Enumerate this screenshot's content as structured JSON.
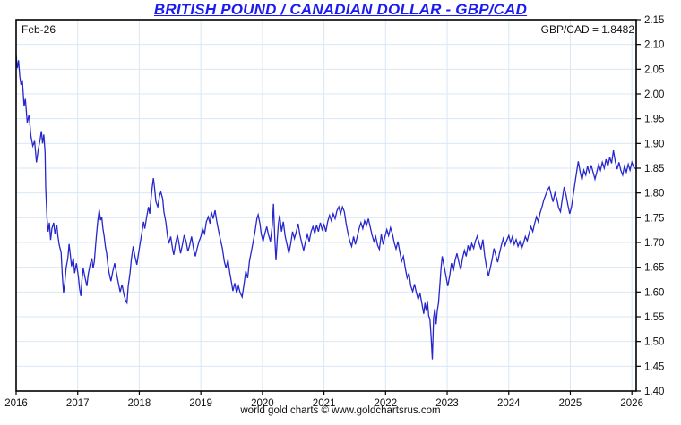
{
  "footer": {
    "credit": "world gold charts © www.goldchartsrus.com"
  },
  "chart_data": {
    "type": "line",
    "title": "BRITISH POUND / CANADIAN DOLLAR - GBP/CAD",
    "date_label": "Feb-26",
    "quote_label": "GBP/CAD = 1.8482",
    "pair": "GBP/CAD",
    "last_value": 1.8482,
    "xlabel": "",
    "ylabel": "",
    "xlim": [
      2016,
      2026.07
    ],
    "ylim": [
      1.4,
      2.15
    ],
    "x_ticks": [
      2016,
      2017,
      2018,
      2019,
      2020,
      2021,
      2022,
      2023,
      2024,
      2025,
      2026
    ],
    "y_ticks": [
      "2.15",
      "2.10",
      "2.05",
      "2.00",
      "1.95",
      "1.90",
      "1.85",
      "1.80",
      "1.75",
      "1.70",
      "1.65",
      "1.60",
      "1.55",
      "1.50",
      "1.45",
      "1.40"
    ],
    "grid": true,
    "legend": "none",
    "line_color": "#2626cc",
    "grid_color": "#d9e8f5",
    "axis_color": "#000000",
    "points": [
      [
        2016.0,
        2.078
      ],
      [
        2016.02,
        2.052
      ],
      [
        2016.04,
        2.068
      ],
      [
        2016.06,
        2.035
      ],
      [
        2016.08,
        2.018
      ],
      [
        2016.1,
        2.028
      ],
      [
        2016.13,
        1.975
      ],
      [
        2016.15,
        1.99
      ],
      [
        2016.18,
        1.942
      ],
      [
        2016.21,
        1.958
      ],
      [
        2016.24,
        1.915
      ],
      [
        2016.27,
        1.895
      ],
      [
        2016.3,
        1.905
      ],
      [
        2016.33,
        1.862
      ],
      [
        2016.36,
        1.888
      ],
      [
        2016.39,
        1.908
      ],
      [
        2016.41,
        1.925
      ],
      [
        2016.43,
        1.9
      ],
      [
        2016.45,
        1.918
      ],
      [
        2016.47,
        1.882
      ],
      [
        2016.48,
        1.81
      ],
      [
        2016.5,
        1.75
      ],
      [
        2016.52,
        1.722
      ],
      [
        2016.54,
        1.74
      ],
      [
        2016.56,
        1.705
      ],
      [
        2016.58,
        1.728
      ],
      [
        2016.61,
        1.74
      ],
      [
        2016.63,
        1.718
      ],
      [
        2016.66,
        1.735
      ],
      [
        2016.68,
        1.712
      ],
      [
        2016.7,
        1.695
      ],
      [
        2016.73,
        1.68
      ],
      [
        2016.75,
        1.635
      ],
      [
        2016.77,
        1.598
      ],
      [
        2016.79,
        1.618
      ],
      [
        2016.81,
        1.648
      ],
      [
        2016.84,
        1.668
      ],
      [
        2016.86,
        1.697
      ],
      [
        2016.88,
        1.675
      ],
      [
        2016.9,
        1.652
      ],
      [
        2016.93,
        1.668
      ],
      [
        2016.95,
        1.638
      ],
      [
        2016.98,
        1.658
      ],
      [
        2017.01,
        1.632
      ],
      [
        2017.03,
        1.607
      ],
      [
        2017.05,
        1.592
      ],
      [
        2017.07,
        1.625
      ],
      [
        2017.09,
        1.648
      ],
      [
        2017.12,
        1.628
      ],
      [
        2017.15,
        1.612
      ],
      [
        2017.17,
        1.635
      ],
      [
        2017.2,
        1.655
      ],
      [
        2017.23,
        1.668
      ],
      [
        2017.25,
        1.648
      ],
      [
        2017.27,
        1.662
      ],
      [
        2017.29,
        1.692
      ],
      [
        2017.31,
        1.722
      ],
      [
        2017.33,
        1.748
      ],
      [
        2017.35,
        1.766
      ],
      [
        2017.37,
        1.745
      ],
      [
        2017.39,
        1.752
      ],
      [
        2017.41,
        1.728
      ],
      [
        2017.43,
        1.712
      ],
      [
        2017.45,
        1.692
      ],
      [
        2017.47,
        1.678
      ],
      [
        2017.49,
        1.655
      ],
      [
        2017.51,
        1.638
      ],
      [
        2017.54,
        1.622
      ],
      [
        2017.57,
        1.642
      ],
      [
        2017.6,
        1.658
      ],
      [
        2017.63,
        1.638
      ],
      [
        2017.66,
        1.618
      ],
      [
        2017.69,
        1.6
      ],
      [
        2017.72,
        1.615
      ],
      [
        2017.75,
        1.595
      ],
      [
        2017.78,
        1.582
      ],
      [
        2017.8,
        1.578
      ],
      [
        2017.82,
        1.612
      ],
      [
        2017.85,
        1.638
      ],
      [
        2017.87,
        1.665
      ],
      [
        2017.9,
        1.692
      ],
      [
        2017.93,
        1.672
      ],
      [
        2017.96,
        1.655
      ],
      [
        2017.98,
        1.672
      ],
      [
        2018.01,
        1.695
      ],
      [
        2018.04,
        1.718
      ],
      [
        2018.07,
        1.742
      ],
      [
        2018.09,
        1.728
      ],
      [
        2018.12,
        1.752
      ],
      [
        2018.15,
        1.772
      ],
      [
        2018.17,
        1.758
      ],
      [
        2018.19,
        1.788
      ],
      [
        2018.21,
        1.812
      ],
      [
        2018.23,
        1.83
      ],
      [
        2018.25,
        1.808
      ],
      [
        2018.27,
        1.782
      ],
      [
        2018.3,
        1.772
      ],
      [
        2018.33,
        1.795
      ],
      [
        2018.35,
        1.802
      ],
      [
        2018.38,
        1.788
      ],
      [
        2018.4,
        1.762
      ],
      [
        2018.43,
        1.742
      ],
      [
        2018.46,
        1.712
      ],
      [
        2018.48,
        1.698
      ],
      [
        2018.51,
        1.712
      ],
      [
        2018.54,
        1.688
      ],
      [
        2018.56,
        1.675
      ],
      [
        2018.59,
        1.698
      ],
      [
        2018.62,
        1.715
      ],
      [
        2018.64,
        1.702
      ],
      [
        2018.67,
        1.678
      ],
      [
        2018.7,
        1.695
      ],
      [
        2018.73,
        1.715
      ],
      [
        2018.76,
        1.702
      ],
      [
        2018.79,
        1.682
      ],
      [
        2018.82,
        1.695
      ],
      [
        2018.85,
        1.712
      ],
      [
        2018.88,
        1.688
      ],
      [
        2018.91,
        1.672
      ],
      [
        2018.94,
        1.688
      ],
      [
        2018.97,
        1.702
      ],
      [
        2019.0,
        1.712
      ],
      [
        2019.03,
        1.728
      ],
      [
        2019.06,
        1.718
      ],
      [
        2019.09,
        1.742
      ],
      [
        2019.12,
        1.752
      ],
      [
        2019.15,
        1.738
      ],
      [
        2019.17,
        1.762
      ],
      [
        2019.2,
        1.748
      ],
      [
        2019.23,
        1.765
      ],
      [
        2019.26,
        1.742
      ],
      [
        2019.29,
        1.722
      ],
      [
        2019.32,
        1.705
      ],
      [
        2019.35,
        1.688
      ],
      [
        2019.38,
        1.662
      ],
      [
        2019.41,
        1.648
      ],
      [
        2019.44,
        1.665
      ],
      [
        2019.47,
        1.638
      ],
      [
        2019.5,
        1.618
      ],
      [
        2019.52,
        1.602
      ],
      [
        2019.55,
        1.618
      ],
      [
        2019.58,
        1.598
      ],
      [
        2019.61,
        1.612
      ],
      [
        2019.64,
        1.598
      ],
      [
        2019.67,
        1.59
      ],
      [
        2019.7,
        1.615
      ],
      [
        2019.73,
        1.642
      ],
      [
        2019.76,
        1.628
      ],
      [
        2019.79,
        1.662
      ],
      [
        2019.82,
        1.682
      ],
      [
        2019.85,
        1.702
      ],
      [
        2019.88,
        1.722
      ],
      [
        2019.91,
        1.748
      ],
      [
        2019.93,
        1.756
      ],
      [
        2019.96,
        1.738
      ],
      [
        2019.98,
        1.718
      ],
      [
        2020.01,
        1.702
      ],
      [
        2020.04,
        1.718
      ],
      [
        2020.07,
        1.732
      ],
      [
        2020.1,
        1.715
      ],
      [
        2020.13,
        1.702
      ],
      [
        2020.16,
        1.735
      ],
      [
        2020.18,
        1.778
      ],
      [
        2020.2,
        1.712
      ],
      [
        2020.22,
        1.664
      ],
      [
        2020.24,
        1.705
      ],
      [
        2020.26,
        1.738
      ],
      [
        2020.28,
        1.755
      ],
      [
        2020.31,
        1.722
      ],
      [
        2020.34,
        1.742
      ],
      [
        2020.37,
        1.712
      ],
      [
        2020.4,
        1.695
      ],
      [
        2020.43,
        1.678
      ],
      [
        2020.46,
        1.698
      ],
      [
        2020.49,
        1.722
      ],
      [
        2020.52,
        1.708
      ],
      [
        2020.55,
        1.722
      ],
      [
        2020.58,
        1.738
      ],
      [
        2020.61,
        1.715
      ],
      [
        2020.64,
        1.698
      ],
      [
        2020.67,
        1.684
      ],
      [
        2020.7,
        1.702
      ],
      [
        2020.73,
        1.716
      ],
      [
        2020.76,
        1.702
      ],
      [
        2020.79,
        1.722
      ],
      [
        2020.82,
        1.732
      ],
      [
        2020.85,
        1.718
      ],
      [
        2020.88,
        1.735
      ],
      [
        2020.91,
        1.722
      ],
      [
        2020.94,
        1.74
      ],
      [
        2020.97,
        1.726
      ],
      [
        2021.0,
        1.736
      ],
      [
        2021.03,
        1.722
      ],
      [
        2021.06,
        1.742
      ],
      [
        2021.09,
        1.755
      ],
      [
        2021.12,
        1.744
      ],
      [
        2021.15,
        1.758
      ],
      [
        2021.18,
        1.748
      ],
      [
        2021.21,
        1.764
      ],
      [
        2021.24,
        1.772
      ],
      [
        2021.27,
        1.758
      ],
      [
        2021.3,
        1.772
      ],
      [
        2021.33,
        1.762
      ],
      [
        2021.36,
        1.738
      ],
      [
        2021.39,
        1.718
      ],
      [
        2021.42,
        1.702
      ],
      [
        2021.45,
        1.692
      ],
      [
        2021.48,
        1.712
      ],
      [
        2021.51,
        1.696
      ],
      [
        2021.54,
        1.712
      ],
      [
        2021.57,
        1.728
      ],
      [
        2021.6,
        1.74
      ],
      [
        2021.63,
        1.728
      ],
      [
        2021.66,
        1.744
      ],
      [
        2021.69,
        1.734
      ],
      [
        2021.72,
        1.748
      ],
      [
        2021.75,
        1.732
      ],
      [
        2021.78,
        1.715
      ],
      [
        2021.81,
        1.702
      ],
      [
        2021.84,
        1.712
      ],
      [
        2021.87,
        1.694
      ],
      [
        2021.9,
        1.686
      ],
      [
        2021.93,
        1.716
      ],
      [
        2021.96,
        1.696
      ],
      [
        2021.99,
        1.712
      ],
      [
        2022.02,
        1.726
      ],
      [
        2022.05,
        1.714
      ],
      [
        2022.08,
        1.73
      ],
      [
        2022.11,
        1.718
      ],
      [
        2022.14,
        1.7
      ],
      [
        2022.17,
        1.687
      ],
      [
        2022.2,
        1.702
      ],
      [
        2022.23,
        1.682
      ],
      [
        2022.26,
        1.662
      ],
      [
        2022.29,
        1.672
      ],
      [
        2022.32,
        1.648
      ],
      [
        2022.35,
        1.628
      ],
      [
        2022.38,
        1.638
      ],
      [
        2022.41,
        1.612
      ],
      [
        2022.44,
        1.601
      ],
      [
        2022.47,
        1.616
      ],
      [
        2022.5,
        1.598
      ],
      [
        2022.53,
        1.585
      ],
      [
        2022.56,
        1.597
      ],
      [
        2022.59,
        1.576
      ],
      [
        2022.62,
        1.556
      ],
      [
        2022.64,
        1.578
      ],
      [
        2022.66,
        1.562
      ],
      [
        2022.68,
        1.582
      ],
      [
        2022.7,
        1.552
      ],
      [
        2022.72,
        1.545
      ],
      [
        2022.74,
        1.508
      ],
      [
        2022.76,
        1.464
      ],
      [
        2022.78,
        1.548
      ],
      [
        2022.8,
        1.566
      ],
      [
        2022.82,
        1.535
      ],
      [
        2022.84,
        1.562
      ],
      [
        2022.86,
        1.578
      ],
      [
        2022.88,
        1.612
      ],
      [
        2022.9,
        1.648
      ],
      [
        2022.92,
        1.672
      ],
      [
        2022.95,
        1.652
      ],
      [
        2022.98,
        1.632
      ],
      [
        2023.01,
        1.612
      ],
      [
        2023.04,
        1.632
      ],
      [
        2023.07,
        1.658
      ],
      [
        2023.1,
        1.642
      ],
      [
        2023.13,
        1.665
      ],
      [
        2023.16,
        1.678
      ],
      [
        2023.19,
        1.66
      ],
      [
        2023.22,
        1.645
      ],
      [
        2023.25,
        1.668
      ],
      [
        2023.28,
        1.684
      ],
      [
        2023.31,
        1.672
      ],
      [
        2023.34,
        1.694
      ],
      [
        2023.37,
        1.682
      ],
      [
        2023.4,
        1.698
      ],
      [
        2023.43,
        1.688
      ],
      [
        2023.46,
        1.703
      ],
      [
        2023.49,
        1.713
      ],
      [
        2023.52,
        1.698
      ],
      [
        2023.55,
        1.686
      ],
      [
        2023.58,
        1.706
      ],
      [
        2023.61,
        1.672
      ],
      [
        2023.64,
        1.65
      ],
      [
        2023.67,
        1.632
      ],
      [
        2023.7,
        1.648
      ],
      [
        2023.73,
        1.666
      ],
      [
        2023.76,
        1.688
      ],
      [
        2023.79,
        1.674
      ],
      [
        2023.82,
        1.66
      ],
      [
        2023.85,
        1.678
      ],
      [
        2023.88,
        1.694
      ],
      [
        2023.91,
        1.708
      ],
      [
        2023.94,
        1.694
      ],
      [
        2023.97,
        1.705
      ],
      [
        2024.0,
        1.714
      ],
      [
        2024.03,
        1.7
      ],
      [
        2024.06,
        1.712
      ],
      [
        2024.09,
        1.696
      ],
      [
        2024.12,
        1.706
      ],
      [
        2024.15,
        1.692
      ],
      [
        2024.18,
        1.702
      ],
      [
        2024.21,
        1.688
      ],
      [
        2024.24,
        1.698
      ],
      [
        2024.27,
        1.712
      ],
      [
        2024.3,
        1.703
      ],
      [
        2024.33,
        1.718
      ],
      [
        2024.36,
        1.732
      ],
      [
        2024.39,
        1.722
      ],
      [
        2024.42,
        1.738
      ],
      [
        2024.45,
        1.752
      ],
      [
        2024.48,
        1.742
      ],
      [
        2024.51,
        1.76
      ],
      [
        2024.54,
        1.772
      ],
      [
        2024.57,
        1.786
      ],
      [
        2024.6,
        1.796
      ],
      [
        2024.63,
        1.806
      ],
      [
        2024.66,
        1.812
      ],
      [
        2024.69,
        1.796
      ],
      [
        2024.72,
        1.782
      ],
      [
        2024.75,
        1.8
      ],
      [
        2024.78,
        1.788
      ],
      [
        2024.81,
        1.77
      ],
      [
        2024.84,
        1.762
      ],
      [
        2024.87,
        1.788
      ],
      [
        2024.9,
        1.812
      ],
      [
        2024.93,
        1.796
      ],
      [
        2024.96,
        1.776
      ],
      [
        2024.99,
        1.758
      ],
      [
        2025.02,
        1.772
      ],
      [
        2025.05,
        1.798
      ],
      [
        2025.08,
        1.824
      ],
      [
        2025.11,
        1.848
      ],
      [
        2025.13,
        1.864
      ],
      [
        2025.16,
        1.842
      ],
      [
        2025.19,
        1.826
      ],
      [
        2025.22,
        1.846
      ],
      [
        2025.25,
        1.836
      ],
      [
        2025.28,
        1.854
      ],
      [
        2025.31,
        1.84
      ],
      [
        2025.34,
        1.856
      ],
      [
        2025.37,
        1.842
      ],
      [
        2025.4,
        1.828
      ],
      [
        2025.43,
        1.842
      ],
      [
        2025.46,
        1.858
      ],
      [
        2025.49,
        1.846
      ],
      [
        2025.52,
        1.862
      ],
      [
        2025.55,
        1.85
      ],
      [
        2025.58,
        1.868
      ],
      [
        2025.61,
        1.854
      ],
      [
        2025.64,
        1.872
      ],
      [
        2025.67,
        1.86
      ],
      [
        2025.7,
        1.886
      ],
      [
        2025.73,
        1.864
      ],
      [
        2025.76,
        1.848
      ],
      [
        2025.79,
        1.862
      ],
      [
        2025.82,
        1.846
      ],
      [
        2025.85,
        1.836
      ],
      [
        2025.88,
        1.854
      ],
      [
        2025.91,
        1.842
      ],
      [
        2025.94,
        1.858
      ],
      [
        2025.97,
        1.846
      ],
      [
        2026.0,
        1.862
      ],
      [
        2026.03,
        1.852
      ],
      [
        2026.07,
        1.8482
      ]
    ]
  }
}
